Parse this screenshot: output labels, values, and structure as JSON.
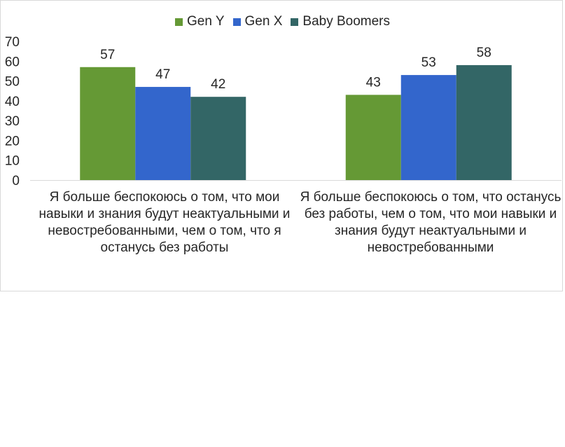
{
  "chart_data": {
    "type": "bar",
    "categories": [
      "Я больше беспокоюсь о том, что мои навыки и знания будут неактуальными и невостребованными, чем о том, что я останусь  без работы",
      "Я больше беспокоюсь о том,  что останусь без работы, чем о  том, что мои навыки и знания будут неактуальными и невостребованными"
    ],
    "series": [
      {
        "name": "Gen Y",
        "values": [
          57,
          43
        ],
        "color": "#659935"
      },
      {
        "name": "Gen X",
        "values": [
          47,
          53
        ],
        "color": "#3366cc"
      },
      {
        "name": "Baby Boomers",
        "values": [
          42,
          58
        ],
        "color": "#336666"
      }
    ],
    "yticks": [
      0,
      10,
      20,
      30,
      40,
      50,
      60,
      70
    ],
    "ylim": [
      0,
      70
    ],
    "grid": false,
    "legend_position": "top"
  }
}
